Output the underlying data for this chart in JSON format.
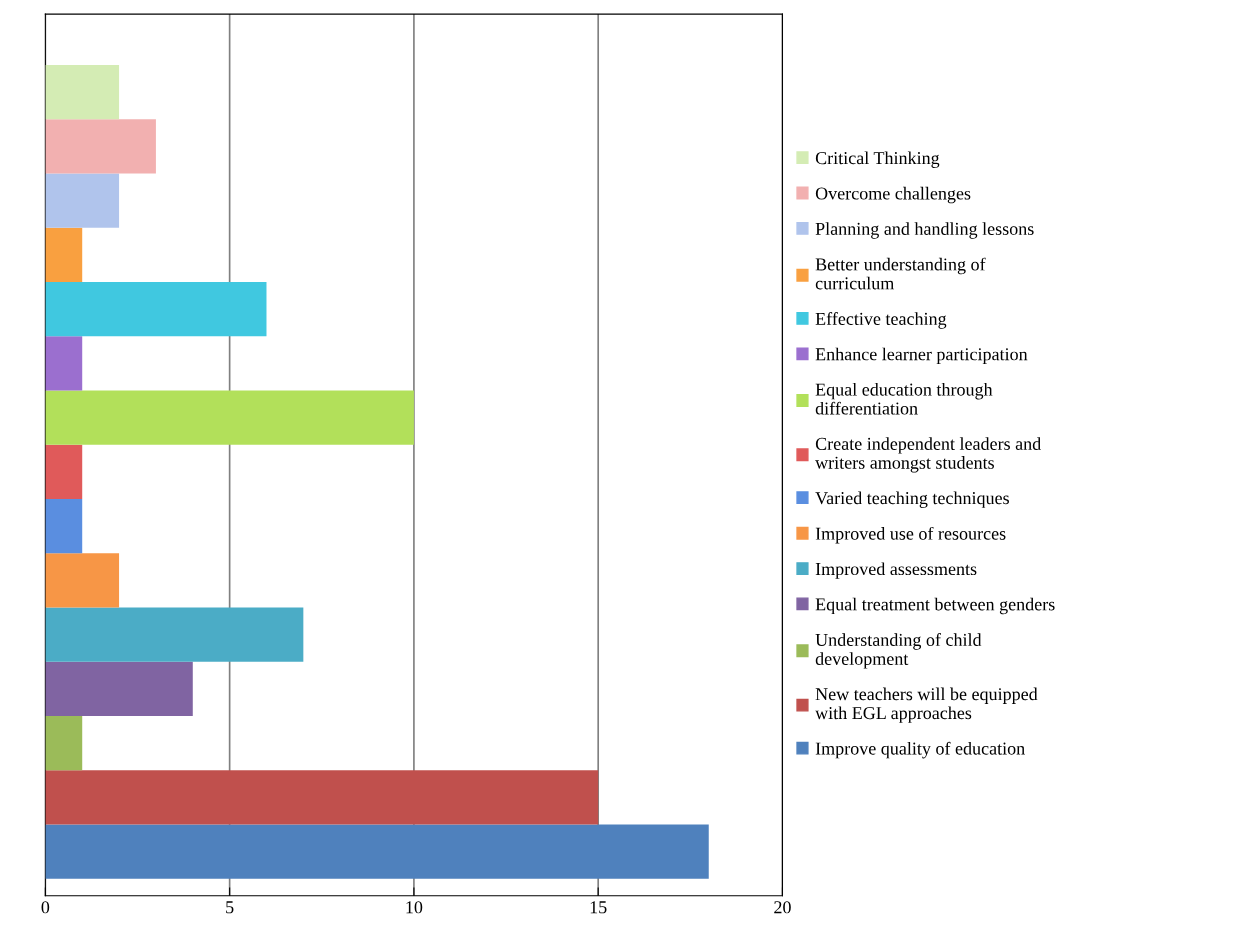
{
  "chart_data": {
    "type": "bar",
    "orientation": "horizontal",
    "categories": [
      null
    ],
    "series": [
      {
        "name": "Improve quality of education",
        "color": "#4f81bd",
        "values": [
          18
        ]
      },
      {
        "name": "New teachers will be equipped\nwith EGL approaches",
        "color": "#c0504d",
        "values": [
          15
        ]
      },
      {
        "name": "Understanding of child\ndevelopment",
        "color": "#9bbb59",
        "values": [
          1
        ]
      },
      {
        "name": "Equal treatment between genders",
        "color": "#8064a2",
        "values": [
          4
        ]
      },
      {
        "name": "Improved assessments",
        "color": "#4bacc6",
        "values": [
          7
        ]
      },
      {
        "name": "Improved use of resources",
        "color": "#f79646",
        "values": [
          2
        ]
      },
      {
        "name": "Varied teaching techniques",
        "color": "#5a8ee0",
        "values": [
          1
        ]
      },
      {
        "name": "Create independent leaders and\nwriters amongst students",
        "color": "#e05a5a",
        "values": [
          1
        ]
      },
      {
        "name": "Equal education through\ndifferentiation",
        "color": "#b2e05a",
        "values": [
          10
        ]
      },
      {
        "name": "Enhance learner participation",
        "color": "#9b6fcf",
        "values": [
          1
        ]
      },
      {
        "name": "Effective teaching",
        "color": "#40c8e0",
        "values": [
          6
        ]
      },
      {
        "name": "Better understanding of\ncurriculum",
        "color": "#f9a040",
        "values": [
          1
        ]
      },
      {
        "name": "Planning and handling lessons",
        "color": "#b0c4ec",
        "values": [
          2
        ]
      },
      {
        "name": "Overcome challenges",
        "color": "#f2b0b0",
        "values": [
          3
        ]
      },
      {
        "name": "Critical Thinking",
        "color": "#d4ecb4",
        "values": [
          2
        ]
      }
    ],
    "xlim": [
      0,
      20
    ],
    "xticks": [
      0,
      5,
      10,
      15,
      20
    ],
    "grid": "x",
    "legend": "right",
    "tick_labels": "x"
  }
}
